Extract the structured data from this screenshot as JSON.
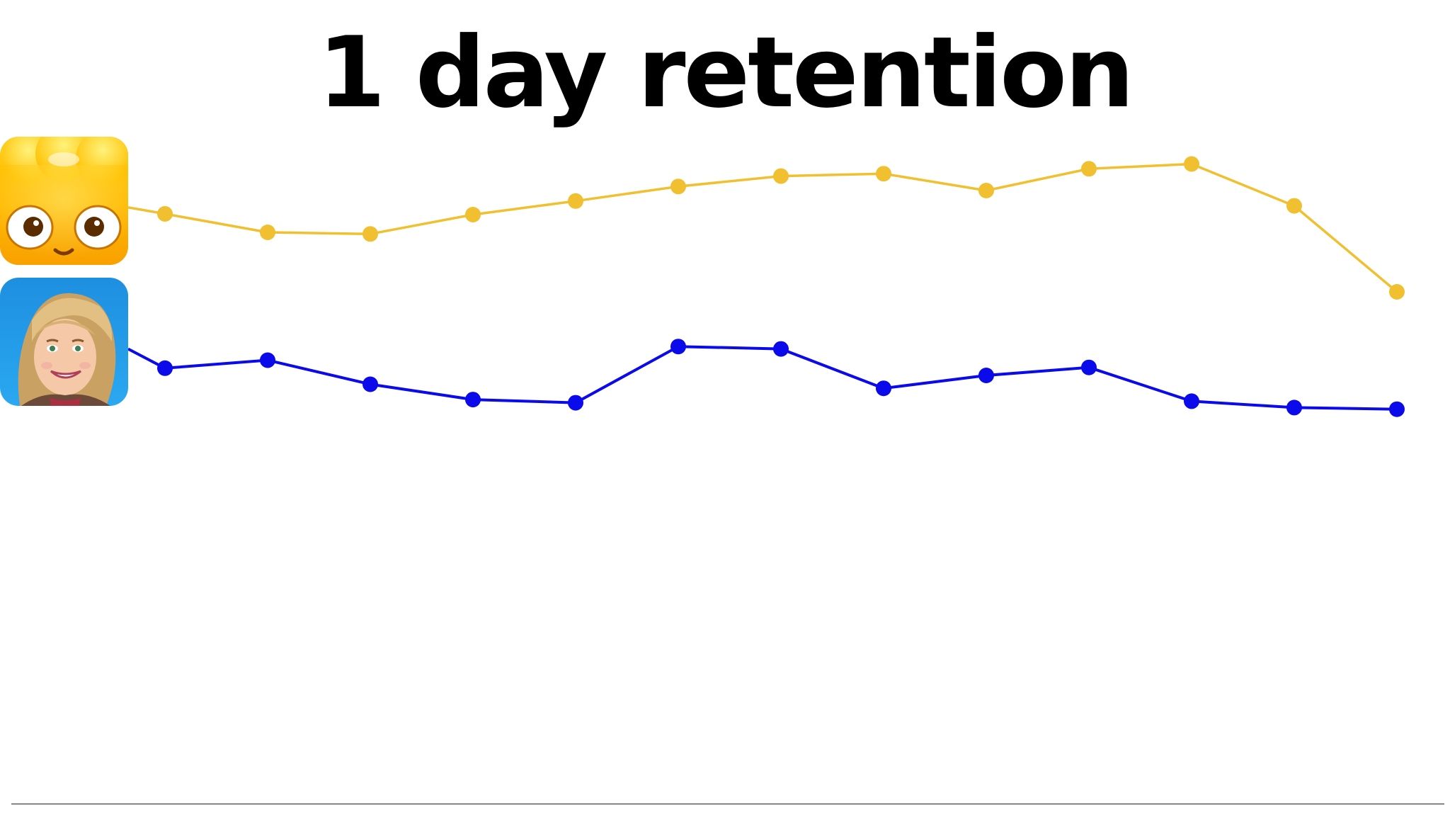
{
  "chart_data": {
    "type": "line",
    "title": "1 day retention",
    "xlabel": "",
    "ylabel": "",
    "x": [
      1,
      2,
      3,
      4,
      5,
      6,
      7,
      8,
      9,
      10,
      11,
      12,
      13
    ],
    "ylim": [
      0,
      100
    ],
    "grid": false,
    "legend": "none",
    "series": [
      {
        "icon": "jelly-splash-app-icon",
        "color": "#F0C030",
        "start_value": 74.2,
        "values": [
          73.4,
          71.1,
          70.9,
          73.3,
          75.0,
          76.8,
          78.1,
          78.4,
          76.3,
          79.0,
          79.6,
          74.4,
          63.7
        ]
      },
      {
        "icon": "pearls-peril-app-icon",
        "color": "#0A0AEA",
        "start_value": 56.6,
        "values": [
          54.2,
          55.2,
          52.2,
          50.3,
          49.9,
          56.9,
          56.6,
          51.7,
          53.3,
          54.3,
          50.1,
          49.3,
          49.1
        ]
      }
    ]
  }
}
